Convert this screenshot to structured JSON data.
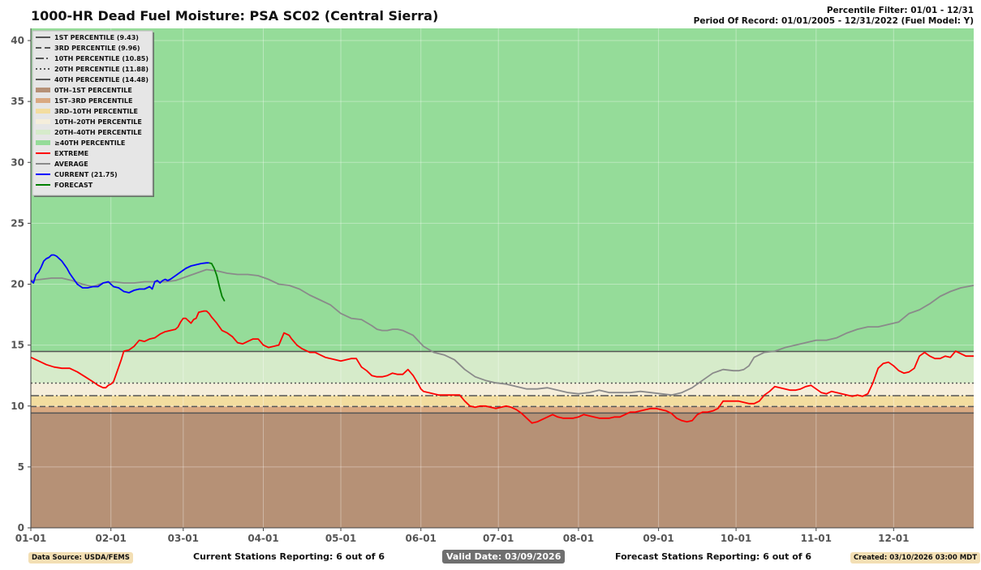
{
  "header": {
    "title": "1000-HR Dead Fuel Moisture: PSA SC02 (Central Sierra)",
    "percentile_filter": "Percentile Filter: 01/01 - 12/31",
    "period_of_record": "Period Of Record: 01/01/2005 - 12/31/2022 (Fuel Model: Y)"
  },
  "footer": {
    "data_source": "Data Source: USDA/FEMS",
    "current_stations": "Current Stations Reporting: 6 out of 6",
    "valid_date": "Valid Date: 03/09/2026",
    "forecast_stations": "Forecast Stations Reporting: 6 out of 6",
    "created": "Created: 03/10/2026 03:00 MDT"
  },
  "chart_data": {
    "type": "line",
    "title": "1000-HR Dead Fuel Moisture: PSA SC02 (Central Sierra)",
    "xlabel": "",
    "ylabel": "",
    "x_domain_days": [
      0,
      365
    ],
    "ylim": [
      0,
      41
    ],
    "yticks": [
      0,
      5,
      10,
      15,
      20,
      25,
      30,
      35,
      40
    ],
    "xticks": [
      {
        "day": 0,
        "label": "01-01"
      },
      {
        "day": 31,
        "label": "02-01"
      },
      {
        "day": 59,
        "label": "03-01"
      },
      {
        "day": 90,
        "label": "04-01"
      },
      {
        "day": 120,
        "label": "05-01"
      },
      {
        "day": 151,
        "label": "06-01"
      },
      {
        "day": 181,
        "label": "07-01"
      },
      {
        "day": 212,
        "label": "08-01"
      },
      {
        "day": 243,
        "label": "09-01"
      },
      {
        "day": 273,
        "label": "10-01"
      },
      {
        "day": 304,
        "label": "11-01"
      },
      {
        "day": 334,
        "label": "12-01"
      }
    ],
    "grid": true,
    "legend_position": "top-left",
    "percentile_lines": [
      {
        "label": "1ST PERCENTILE (9.43)",
        "value": 9.43,
        "style": "solid",
        "color": "#555555"
      },
      {
        "label": "3RD PERCENTILE (9.96)",
        "value": 9.96,
        "style": "dashed",
        "color": "#555555"
      },
      {
        "label": "10TH PERCENTILE (10.85)",
        "value": 10.85,
        "style": "dashdot",
        "color": "#555555"
      },
      {
        "label": "20TH PERCENTILE (11.88)",
        "value": 11.88,
        "style": "dotted",
        "color": "#555555"
      },
      {
        "label": "40TH PERCENTILE (14.48)",
        "value": 14.48,
        "style": "solid",
        "color": "#555555"
      }
    ],
    "bands": [
      {
        "label": "0TH–1ST PERCENTILE",
        "from": 0,
        "to": 9.43,
        "color": "#b69176"
      },
      {
        "label": "1ST–3RD PERCENTILE",
        "from": 9.43,
        "to": 9.96,
        "color": "#d9a981"
      },
      {
        "label": "3RD–10TH PERCENTILE",
        "from": 9.96,
        "to": 10.85,
        "color": "#f3dd9f"
      },
      {
        "label": "10TH–20TH PERCENTILE",
        "from": 10.85,
        "to": 11.88,
        "color": "#f5eedb"
      },
      {
        "label": "20TH–40TH PERCENTILE",
        "from": 11.88,
        "to": 14.48,
        "color": "#d6ebca"
      },
      {
        "label": "≥40TH PERCENTILE",
        "from": 14.48,
        "to": 41,
        "color": "#95dc99"
      }
    ],
    "series": [
      {
        "name": "EXTREME",
        "color": "#ff0000",
        "x": [
          0,
          3,
          6,
          9,
          12,
          15,
          18,
          21,
          24,
          26,
          28,
          29,
          30,
          31,
          32,
          33,
          35,
          36,
          38,
          40,
          42,
          44,
          46,
          48,
          50,
          52,
          54,
          56,
          57,
          58,
          59,
          60,
          61,
          62,
          63,
          64,
          65,
          67,
          68,
          69,
          70,
          72,
          74,
          76,
          78,
          80,
          82,
          84,
          86,
          88,
          90,
          92,
          94,
          96,
          98,
          100,
          101,
          103,
          105,
          108,
          110,
          112,
          114,
          116,
          118,
          120,
          122,
          124,
          126,
          128,
          130,
          132,
          134,
          136,
          138,
          140,
          142,
          144,
          146,
          148,
          150,
          151,
          152,
          154,
          156,
          158,
          160,
          162,
          164,
          166,
          168,
          170,
          172,
          174,
          176,
          178,
          180,
          182,
          184,
          186,
          188,
          190,
          192,
          194,
          196,
          198,
          200,
          202,
          204,
          206,
          208,
          210,
          212,
          214,
          216,
          218,
          220,
          222,
          224,
          226,
          228,
          230,
          232,
          234,
          236,
          238,
          240,
          242,
          244,
          246,
          248,
          250,
          252,
          254,
          256,
          258,
          260,
          262,
          264,
          266,
          268,
          270,
          272,
          274,
          276,
          278,
          280,
          282,
          284,
          286,
          288,
          290,
          292,
          294,
          296,
          298,
          300,
          302,
          304,
          306,
          308,
          310,
          312,
          314,
          316,
          318,
          320,
          322,
          324,
          326,
          328,
          330,
          332,
          334,
          336,
          338,
          340,
          342,
          344,
          346,
          348,
          350,
          352,
          354,
          356,
          358,
          360,
          362,
          365
        ],
        "y": [
          14.0,
          13.7,
          13.4,
          13.2,
          13.1,
          13.1,
          12.8,
          12.4,
          12.0,
          11.7,
          11.5,
          11.5,
          11.7,
          11.8,
          12.0,
          12.6,
          13.8,
          14.5,
          14.6,
          14.9,
          15.4,
          15.3,
          15.5,
          15.6,
          15.9,
          16.1,
          16.2,
          16.3,
          16.5,
          16.9,
          17.2,
          17.2,
          17.0,
          16.8,
          17.1,
          17.2,
          17.7,
          17.8,
          17.8,
          17.6,
          17.3,
          16.8,
          16.2,
          16.0,
          15.7,
          15.2,
          15.1,
          15.3,
          15.5,
          15.5,
          15.0,
          14.8,
          14.9,
          15.0,
          16.0,
          15.8,
          15.5,
          15.0,
          14.7,
          14.4,
          14.4,
          14.2,
          14.0,
          13.9,
          13.8,
          13.7,
          13.8,
          13.9,
          13.9,
          13.2,
          12.9,
          12.5,
          12.4,
          12.4,
          12.5,
          12.7,
          12.6,
          12.6,
          13.0,
          12.5,
          11.8,
          11.4,
          11.2,
          11.1,
          11.0,
          10.9,
          10.9,
          10.9,
          10.9,
          10.9,
          10.4,
          10.0,
          9.9,
          10.0,
          10.0,
          9.9,
          9.8,
          9.9,
          10.0,
          9.9,
          9.7,
          9.4,
          9.0,
          8.6,
          8.7,
          8.9,
          9.1,
          9.3,
          9.1,
          9.0,
          9.0,
          9.0,
          9.1,
          9.3,
          9.2,
          9.1,
          9.0,
          9.0,
          9.0,
          9.1,
          9.1,
          9.3,
          9.5,
          9.5,
          9.6,
          9.7,
          9.8,
          9.8,
          9.7,
          9.6,
          9.4,
          9.0,
          8.8,
          8.7,
          8.8,
          9.3,
          9.5,
          9.5,
          9.6,
          9.8,
          10.4,
          10.4,
          10.4,
          10.4,
          10.3,
          10.2,
          10.2,
          10.4,
          10.9,
          11.2,
          11.6,
          11.5,
          11.4,
          11.3,
          11.3,
          11.4,
          11.6,
          11.7,
          11.4,
          11.1,
          11.0,
          11.2,
          11.1,
          11.0,
          10.9,
          10.8,
          10.9,
          10.8,
          11.0,
          11.9,
          13.1,
          13.5,
          13.6,
          13.3,
          12.9,
          12.7,
          12.8,
          13.1,
          14.1,
          14.4,
          14.1,
          13.9,
          13.9,
          14.1,
          14.0,
          14.5,
          14.3,
          14.1,
          14.1
        ]
      },
      {
        "name": "AVERAGE",
        "color": "#8a8a8a",
        "x": [
          0,
          4,
          8,
          12,
          16,
          20,
          24,
          28,
          32,
          36,
          40,
          44,
          48,
          52,
          56,
          60,
          64,
          68,
          72,
          76,
          80,
          84,
          88,
          92,
          96,
          100,
          104,
          108,
          112,
          116,
          120,
          124,
          128,
          132,
          134,
          136,
          138,
          140,
          142,
          144,
          148,
          152,
          156,
          160,
          164,
          168,
          172,
          176,
          180,
          184,
          188,
          192,
          196,
          200,
          204,
          208,
          212,
          216,
          220,
          224,
          228,
          232,
          236,
          240,
          244,
          248,
          252,
          256,
          260,
          264,
          268,
          272,
          274,
          276,
          278,
          280,
          284,
          288,
          292,
          296,
          300,
          304,
          308,
          312,
          316,
          320,
          324,
          328,
          332,
          336,
          340,
          344,
          348,
          352,
          356,
          360,
          365
        ],
        "y": [
          20.3,
          20.4,
          20.5,
          20.5,
          20.3,
          20.0,
          19.8,
          20.1,
          20.2,
          20.1,
          20.1,
          20.2,
          20.2,
          20.2,
          20.3,
          20.6,
          20.9,
          21.2,
          21.1,
          20.9,
          20.8,
          20.8,
          20.7,
          20.4,
          20.0,
          19.9,
          19.6,
          19.1,
          18.7,
          18.3,
          17.6,
          17.2,
          17.1,
          16.6,
          16.3,
          16.2,
          16.2,
          16.3,
          16.3,
          16.2,
          15.8,
          14.9,
          14.4,
          14.2,
          13.8,
          13.0,
          12.4,
          12.1,
          11.9,
          11.8,
          11.6,
          11.4,
          11.4,
          11.5,
          11.3,
          11.1,
          11.0,
          11.1,
          11.3,
          11.1,
          11.1,
          11.1,
          11.2,
          11.1,
          11.0,
          10.9,
          11.1,
          11.5,
          12.1,
          12.7,
          13.0,
          12.9,
          12.9,
          13.0,
          13.3,
          14.0,
          14.4,
          14.5,
          14.8,
          15.0,
          15.2,
          15.4,
          15.4,
          15.6,
          16.0,
          16.3,
          16.5,
          16.5,
          16.7,
          16.9,
          17.6,
          17.9,
          18.4,
          19.0,
          19.4,
          19.7,
          19.9
        ]
      },
      {
        "name": "CURRENT (21.75)",
        "color": "#0000ff",
        "x": [
          0,
          1,
          2,
          3,
          4,
          5,
          6,
          7,
          8,
          9,
          10,
          11,
          12,
          13,
          14,
          15,
          16,
          18,
          20,
          22,
          24,
          26,
          28,
          30,
          32,
          34,
          36,
          38,
          40,
          42,
          44,
          46,
          47,
          48,
          49,
          50,
          51,
          52,
          53,
          54,
          56,
          58,
          60,
          62,
          64,
          66,
          68,
          69
        ],
        "y": [
          20.3,
          20.1,
          20.8,
          21.0,
          21.4,
          21.9,
          22.1,
          22.2,
          22.4,
          22.4,
          22.3,
          22.1,
          21.9,
          21.6,
          21.3,
          20.9,
          20.6,
          20.0,
          19.7,
          19.7,
          19.8,
          19.8,
          20.1,
          20.2,
          19.8,
          19.7,
          19.4,
          19.3,
          19.5,
          19.6,
          19.6,
          19.8,
          19.6,
          20.2,
          20.3,
          20.1,
          20.3,
          20.4,
          20.3,
          20.4,
          20.7,
          21.0,
          21.3,
          21.5,
          21.6,
          21.7,
          21.75,
          21.75
        ]
      },
      {
        "name": "FORECAST",
        "color": "#008000",
        "x": [
          69,
          70,
          71,
          72,
          73,
          74,
          75
        ],
        "y": [
          21.75,
          21.7,
          21.3,
          20.7,
          19.8,
          19.0,
          18.6
        ]
      }
    ]
  }
}
